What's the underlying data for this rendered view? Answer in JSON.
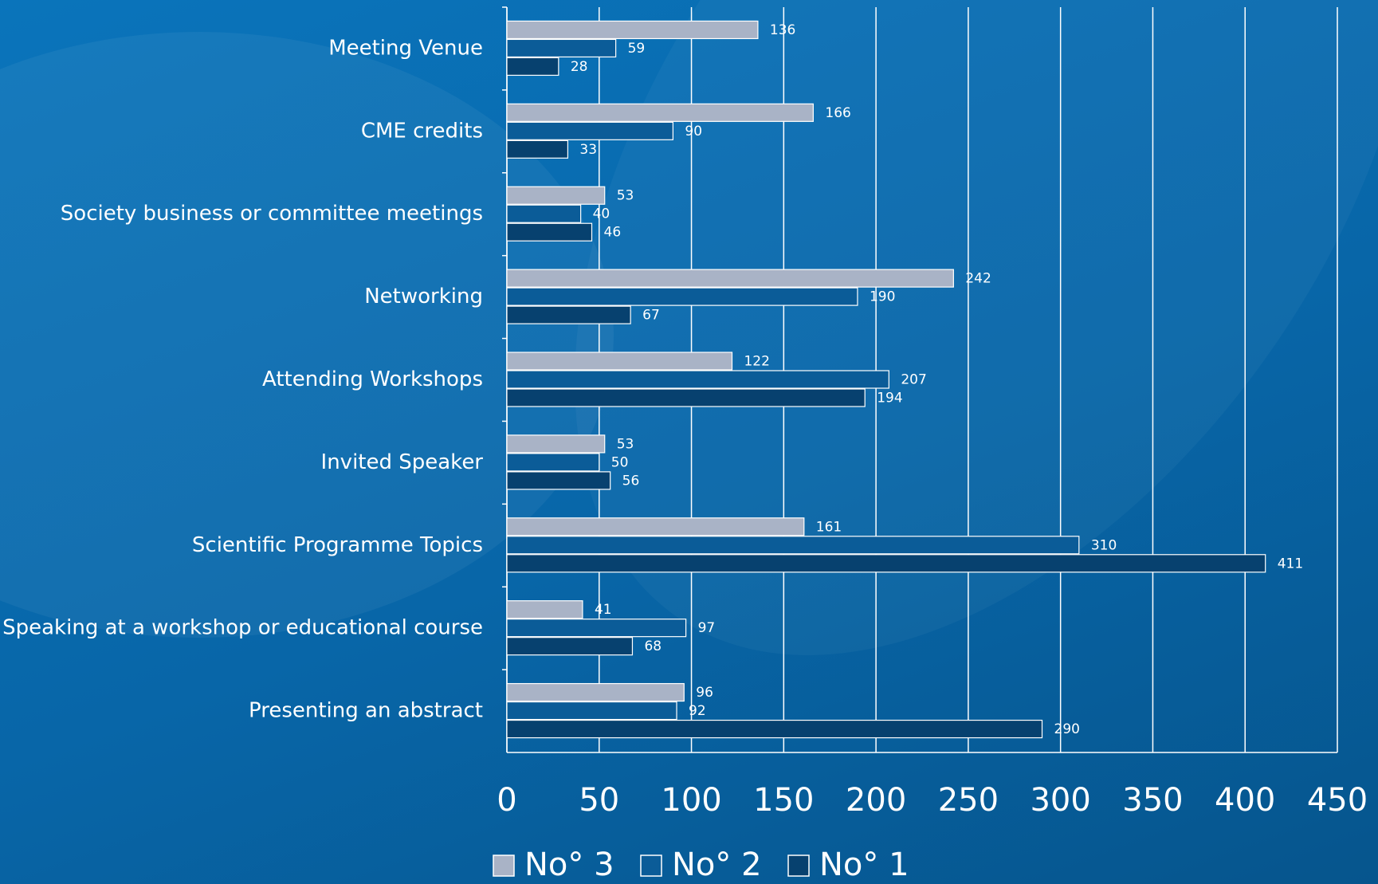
{
  "chart_data": {
    "type": "hbar",
    "categories": [
      "Meeting Venue",
      "CME credits",
      "Society business or committee meetings",
      "Networking",
      "Attending Workshops",
      "Invited Speaker",
      "Scientific Programme Topics",
      "Speaking at a workshop or educational course",
      "Presenting an abstract"
    ],
    "series": [
      {
        "name": "No° 3",
        "color": "#a9b3c6",
        "values": [
          136,
          166,
          53,
          242,
          122,
          53,
          161,
          41,
          96
        ]
      },
      {
        "name": "No° 2",
        "color": "#0b5c98",
        "values": [
          59,
          90,
          40,
          190,
          207,
          50,
          310,
          97,
          92
        ]
      },
      {
        "name": "No° 1",
        "color": "#07416f",
        "values": [
          28,
          33,
          46,
          67,
          194,
          56,
          411,
          68,
          290
        ]
      }
    ],
    "xlim": [
      0,
      450
    ],
    "xticks": [
      0,
      50,
      100,
      150,
      200,
      250,
      300,
      350,
      400,
      450
    ],
    "grid": true,
    "legend": "bottom"
  }
}
